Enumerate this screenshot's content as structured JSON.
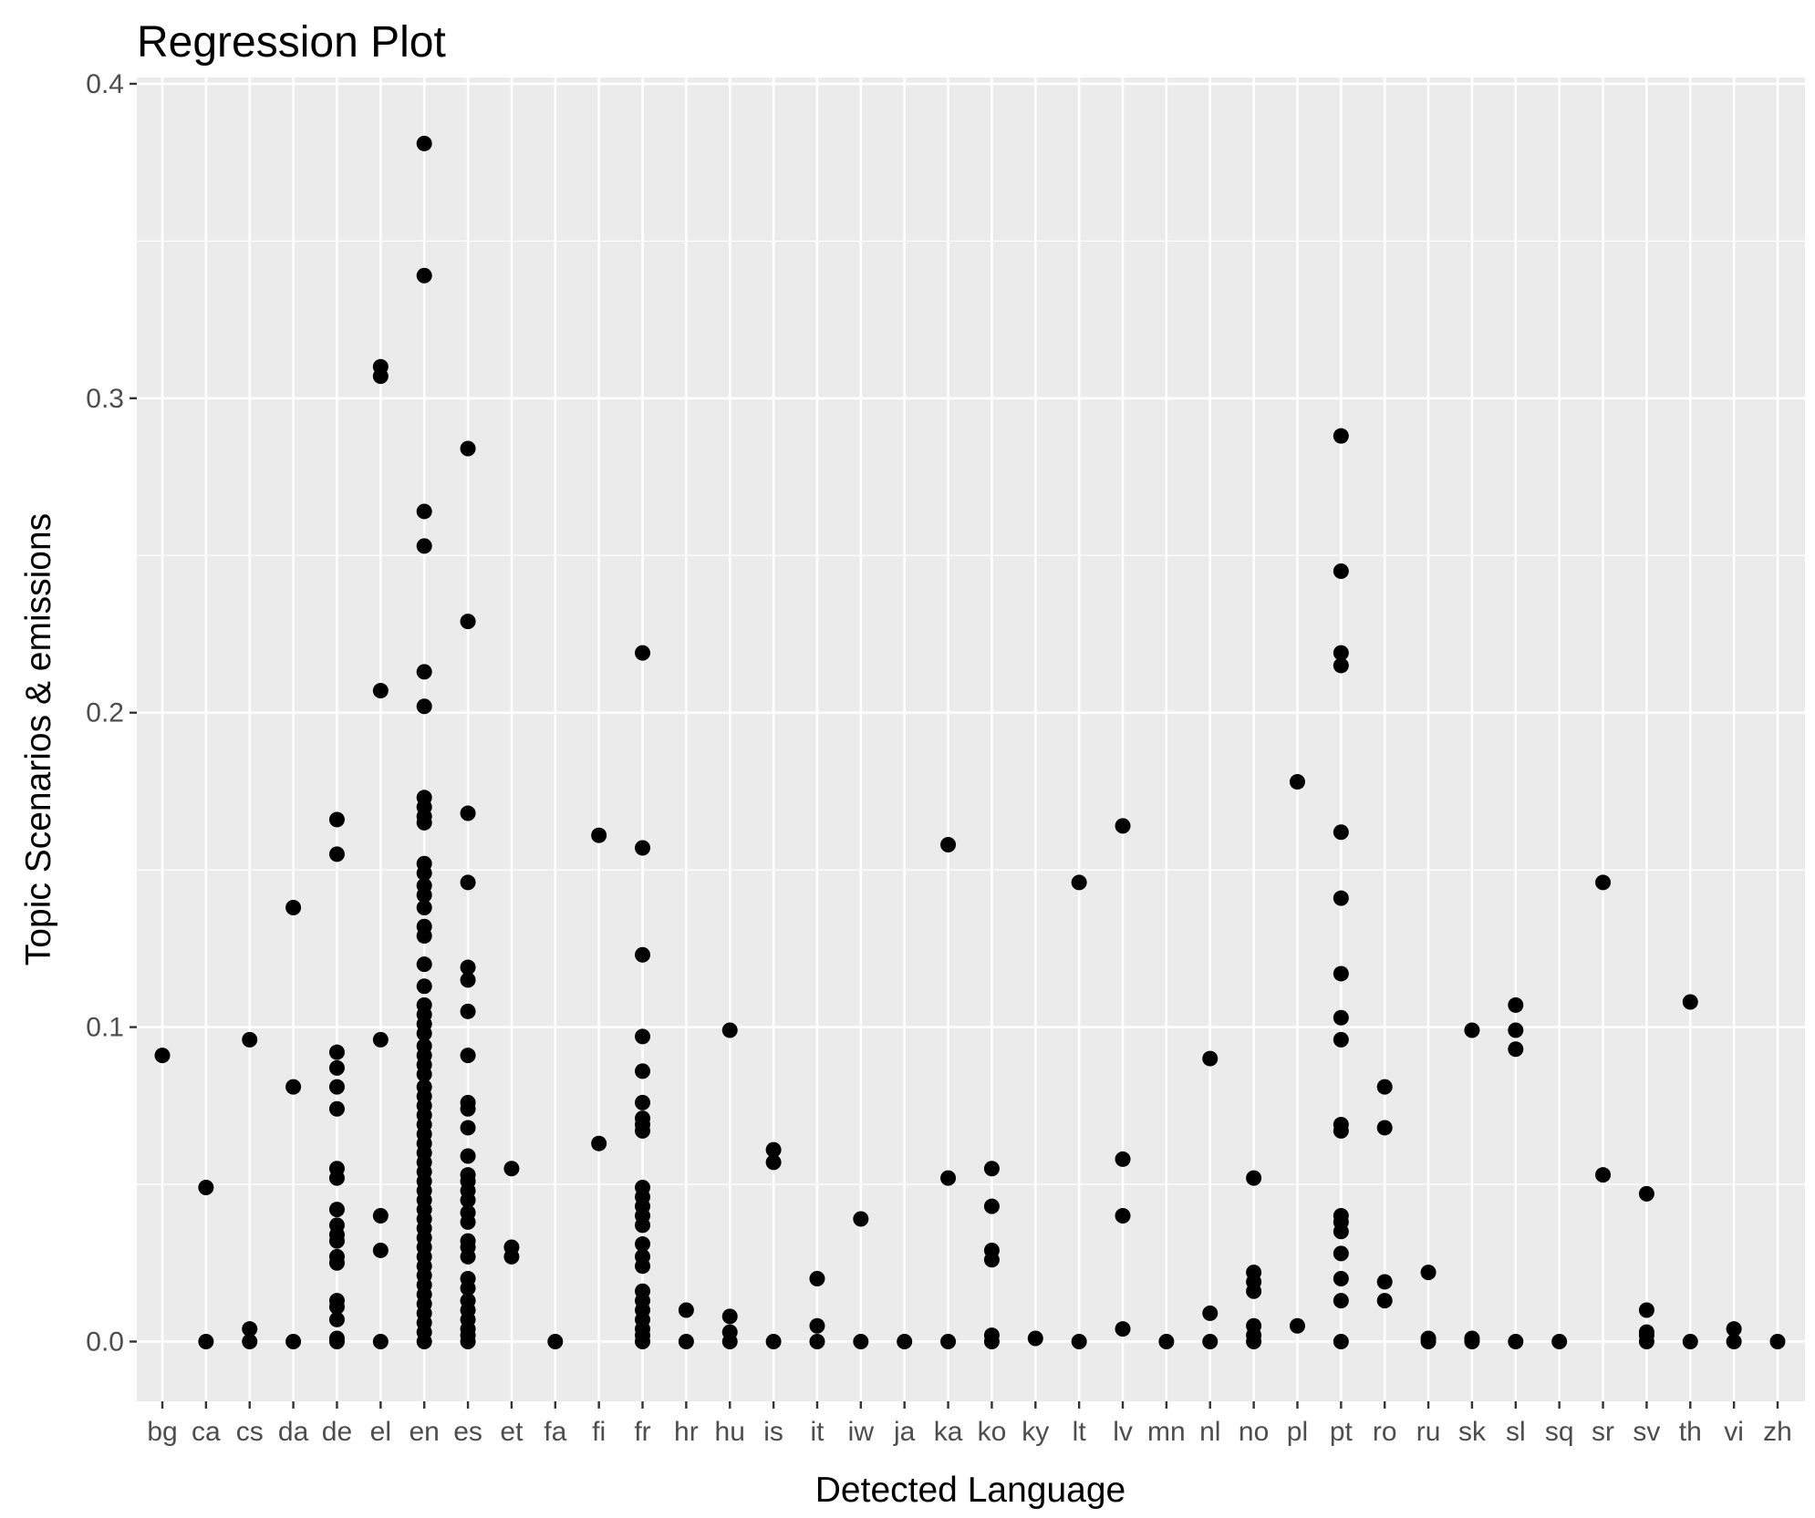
{
  "chart_data": {
    "type": "scatter",
    "title": "Regression Plot",
    "xlabel": "Detected Language",
    "ylabel": "Topic Scenarios & emissions",
    "categories": [
      "bg",
      "ca",
      "cs",
      "da",
      "de",
      "el",
      "en",
      "es",
      "et",
      "fa",
      "fi",
      "fr",
      "hr",
      "hu",
      "is",
      "it",
      "iw",
      "ja",
      "ka",
      "ko",
      "ky",
      "lt",
      "lv",
      "mn",
      "nl",
      "no",
      "pl",
      "pt",
      "ro",
      "ru",
      "sk",
      "sl",
      "sq",
      "sr",
      "sv",
      "th",
      "vi",
      "zh"
    ],
    "ylim": [
      -0.019,
      0.402
    ],
    "yticks": [
      0.0,
      0.1,
      0.2,
      0.3,
      0.4
    ],
    "ytick_labels": [
      "0.0",
      "0.1",
      "0.2",
      "0.3",
      "0.4"
    ],
    "grid": true,
    "colors": {
      "panel": "#ebebeb",
      "grid_major": "#ffffff",
      "point": "#000000",
      "axis_text": "#4d4d4d"
    },
    "points": {
      "bg": [
        0.091
      ],
      "ca": [
        0.049,
        0.0
      ],
      "cs": [
        0.096,
        0.004,
        0.0
      ],
      "da": [
        0.138,
        0.081,
        0.0
      ],
      "de": [
        0.166,
        0.155,
        0.092,
        0.087,
        0.081,
        0.074,
        0.055,
        0.052,
        0.042,
        0.037,
        0.034,
        0.032,
        0.027,
        0.025,
        0.013,
        0.011,
        0.007,
        0.001,
        0.0
      ],
      "el": [
        0.31,
        0.307,
        0.207,
        0.096,
        0.04,
        0.029,
        0.0
      ],
      "en": [
        0.381,
        0.339,
        0.264,
        0.253,
        0.213,
        0.202,
        0.173,
        0.17,
        0.167,
        0.165,
        0.152,
        0.149,
        0.145,
        0.142,
        0.138,
        0.132,
        0.129,
        0.12,
        0.113,
        0.107,
        0.104,
        0.101,
        0.098,
        0.094,
        0.091,
        0.088,
        0.085,
        0.081,
        0.078,
        0.075,
        0.072,
        0.069,
        0.066,
        0.063,
        0.06,
        0.057,
        0.054,
        0.051,
        0.048,
        0.045,
        0.042,
        0.039,
        0.036,
        0.033,
        0.03,
        0.027,
        0.024,
        0.021,
        0.018,
        0.015,
        0.012,
        0.009,
        0.006,
        0.003,
        0.0
      ],
      "es": [
        0.284,
        0.229,
        0.168,
        0.146,
        0.119,
        0.115,
        0.105,
        0.091,
        0.076,
        0.074,
        0.068,
        0.059,
        0.053,
        0.051,
        0.048,
        0.045,
        0.041,
        0.038,
        0.032,
        0.03,
        0.027,
        0.02,
        0.017,
        0.013,
        0.01,
        0.007,
        0.004,
        0.002,
        0.0
      ],
      "et": [
        0.055,
        0.03,
        0.027
      ],
      "fa": [
        0.0
      ],
      "fi": [
        0.161,
        0.063
      ],
      "fr": [
        0.219,
        0.157,
        0.123,
        0.097,
        0.086,
        0.076,
        0.071,
        0.069,
        0.067,
        0.049,
        0.046,
        0.043,
        0.04,
        0.037,
        0.031,
        0.027,
        0.024,
        0.016,
        0.013,
        0.01,
        0.007,
        0.004,
        0.002,
        0.0
      ],
      "hr": [
        0.01,
        0.0
      ],
      "hu": [
        0.099,
        0.008,
        0.003,
        0.0
      ],
      "is": [
        0.061,
        0.057,
        0.0
      ],
      "it": [
        0.02,
        0.005,
        0.0
      ],
      "iw": [
        0.039,
        0.0
      ],
      "ja": [
        0.0
      ],
      "ka": [
        0.158,
        0.052,
        0.0
      ],
      "ko": [
        0.055,
        0.043,
        0.029,
        0.026,
        0.002,
        0.0
      ],
      "ky": [
        0.001
      ],
      "lt": [
        0.146,
        0.0
      ],
      "lv": [
        0.164,
        0.058,
        0.04,
        0.004
      ],
      "mn": [
        0.0
      ],
      "nl": [
        0.09,
        0.009,
        0.0
      ],
      "no": [
        0.052,
        0.022,
        0.019,
        0.016,
        0.005,
        0.002,
        0.0
      ],
      "pl": [
        0.178,
        0.005
      ],
      "pt": [
        0.288,
        0.245,
        0.219,
        0.215,
        0.162,
        0.141,
        0.117,
        0.103,
        0.096,
        0.069,
        0.067,
        0.04,
        0.038,
        0.035,
        0.028,
        0.02,
        0.013,
        0.0
      ],
      "ro": [
        0.081,
        0.068,
        0.019,
        0.013
      ],
      "ru": [
        0.022,
        0.001,
        0.0
      ],
      "sk": [
        0.099,
        0.001,
        0.0
      ],
      "sl": [
        0.107,
        0.099,
        0.093,
        0.0
      ],
      "sq": [
        0.0
      ],
      "sr": [
        0.146,
        0.053
      ],
      "sv": [
        0.047,
        0.01,
        0.003,
        0.002,
        0.0
      ],
      "th": [
        0.108,
        0.0
      ],
      "vi": [
        0.004,
        0.0
      ],
      "zh": [
        0.0
      ]
    }
  }
}
